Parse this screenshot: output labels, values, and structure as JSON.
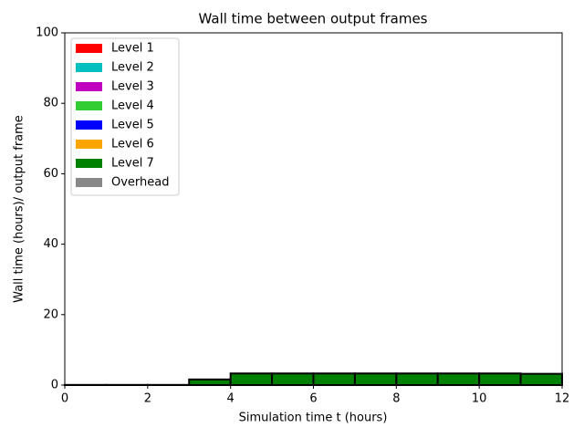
{
  "chart_data": {
    "type": "histogram",
    "title": "Wall time between output frames",
    "x_label": "Simulation time t (hours)",
    "y_label": "Wall time (hours)/ output frame",
    "bins": [
      0,
      1,
      2,
      3,
      4,
      5,
      6,
      7,
      8,
      9,
      10,
      11,
      12
    ],
    "series": [
      {
        "name": "Level 1",
        "color": "#ff0000",
        "values": [
          0,
          0,
          0,
          0,
          0,
          0,
          0,
          0,
          0,
          0,
          0,
          0
        ]
      },
      {
        "name": "Level 2",
        "color": "#00bfbf",
        "values": [
          0,
          0,
          0,
          0,
          0,
          0,
          0,
          0,
          0,
          0,
          0,
          0
        ]
      },
      {
        "name": "Level 3",
        "color": "#bf00bf",
        "values": [
          0,
          0,
          0,
          0,
          0,
          0,
          0,
          0,
          0,
          0,
          0,
          0
        ]
      },
      {
        "name": "Level 4",
        "color": "#32cd32",
        "values": [
          0,
          0,
          0,
          0,
          0,
          0,
          0,
          0,
          0,
          0,
          0,
          0
        ]
      },
      {
        "name": "Level 5",
        "color": "#0000ff",
        "values": [
          0,
          0,
          0,
          0,
          0,
          0,
          0,
          0,
          0,
          0,
          0,
          0
        ]
      },
      {
        "name": "Level 6",
        "color": "#ffa500",
        "values": [
          0,
          0,
          0,
          0,
          0,
          0,
          0,
          0,
          0,
          0,
          0,
          0
        ]
      },
      {
        "name": "Level 7",
        "color": "#008000",
        "values": [
          0.05,
          0.05,
          0.05,
          1.6,
          3.3,
          3.3,
          3.3,
          3.3,
          3.3,
          3.3,
          3.3,
          3.2
        ]
      },
      {
        "name": "Overhead",
        "color": "#888888",
        "values": [
          0,
          0,
          0,
          0,
          0,
          0,
          0,
          0,
          0,
          0,
          0,
          0
        ]
      }
    ],
    "xlim": [
      0,
      12
    ],
    "xticks": [
      0,
      2,
      4,
      6,
      8,
      10,
      12
    ],
    "ylim": [
      0,
      100
    ],
    "yticks": [
      0,
      20,
      40,
      60,
      80,
      100
    ],
    "legend": "upper left",
    "grid": false
  }
}
